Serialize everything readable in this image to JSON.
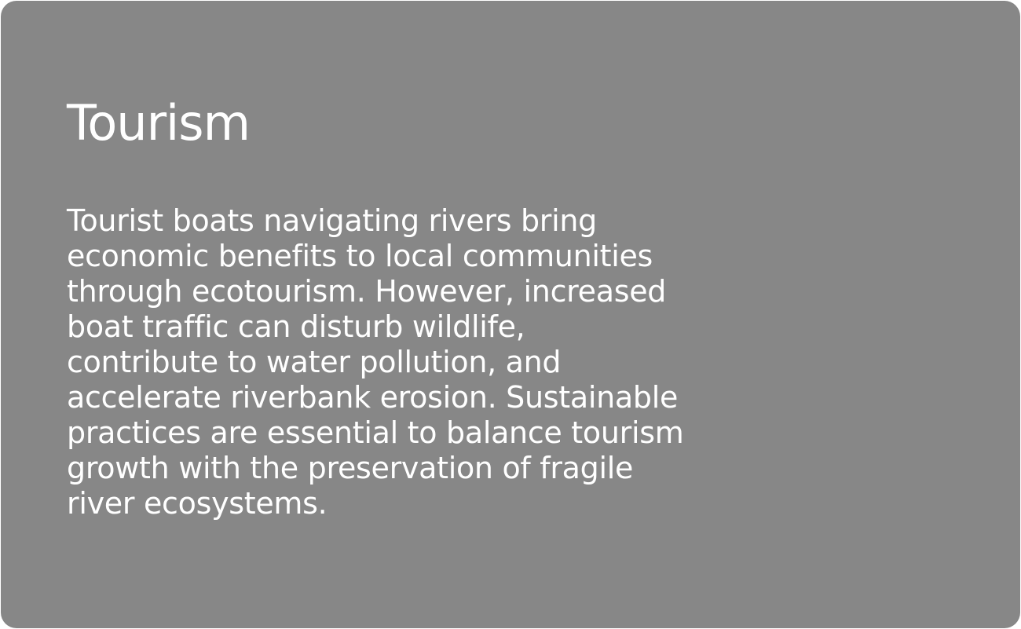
{
  "card": {
    "title": "Tourism",
    "body_lines": [
      "Tourist boats navigating rivers bring",
      "economic benefits to local communities",
      "through ecotourism. However, increased",
      "boat traffic can disturb wildlife,",
      "contribute to water pollution, and",
      "accelerate riverbank erosion. Sustainable",
      "practices are essential to balance tourism",
      "growth with the preservation of fragile",
      "river ecosystems."
    ]
  },
  "colors": {
    "card_background": "#878787",
    "text": "#ffffff"
  }
}
